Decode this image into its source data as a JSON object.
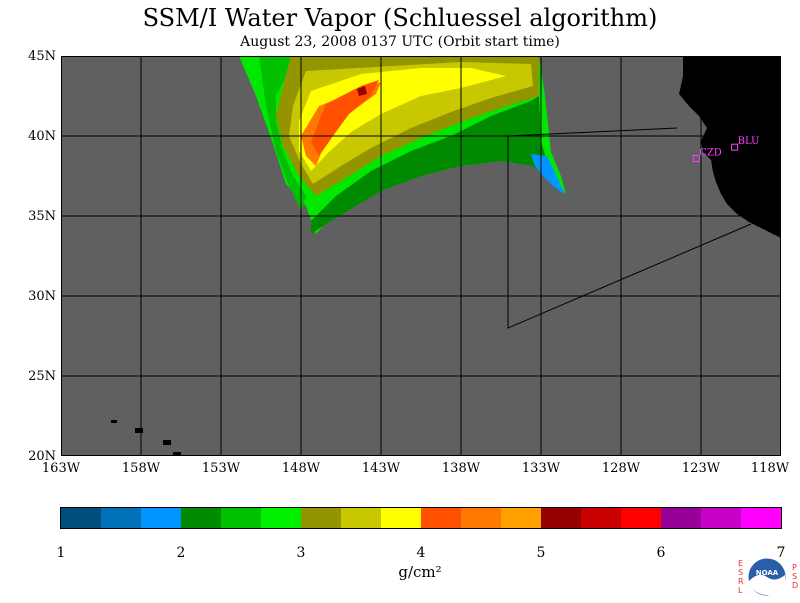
{
  "title": "SSM/I Water Vapor (Schluessel algorithm)",
  "subtitle": "August 23, 2008  0137 UTC  (Orbit start time)",
  "lat_labels": [
    "45N",
    "40N",
    "35N",
    "30N",
    "25N",
    "20N"
  ],
  "lon_labels": [
    "163W",
    "158W",
    "153W",
    "148W",
    "143W",
    "138W",
    "133W",
    "128W",
    "123W",
    "118W"
  ],
  "map": {
    "lon_range": [
      -163,
      -118
    ],
    "lat_range": [
      20,
      45
    ],
    "background_color": "#606060",
    "land_color": "#000000",
    "gridlines": true
  },
  "stations": [
    {
      "code": "CZD",
      "lon": -123.3,
      "lat": 38.6
    },
    {
      "code": "BLU",
      "lon": -120.9,
      "lat": 39.3
    }
  ],
  "colorbar": {
    "units": "g/cm²",
    "tick_labels": [
      "1",
      "2",
      "3",
      "4",
      "5",
      "6",
      "7"
    ],
    "min": 1,
    "max": 7,
    "colors": [
      "#004e7a",
      "#0070b8",
      "#0096ff",
      "#008a00",
      "#00c000",
      "#00f000",
      "#949400",
      "#c8c800",
      "#ffff00",
      "#ff5000",
      "#ff7800",
      "#ffa000",
      "#960000",
      "#c80000",
      "#ff0000",
      "#960096",
      "#c800c8",
      "#ff00ff"
    ]
  },
  "logo": {
    "text": "NOAA",
    "left_letters": [
      "E",
      "S",
      "R",
      "L"
    ],
    "right_letters": [
      "P",
      "S",
      "D"
    ]
  }
}
